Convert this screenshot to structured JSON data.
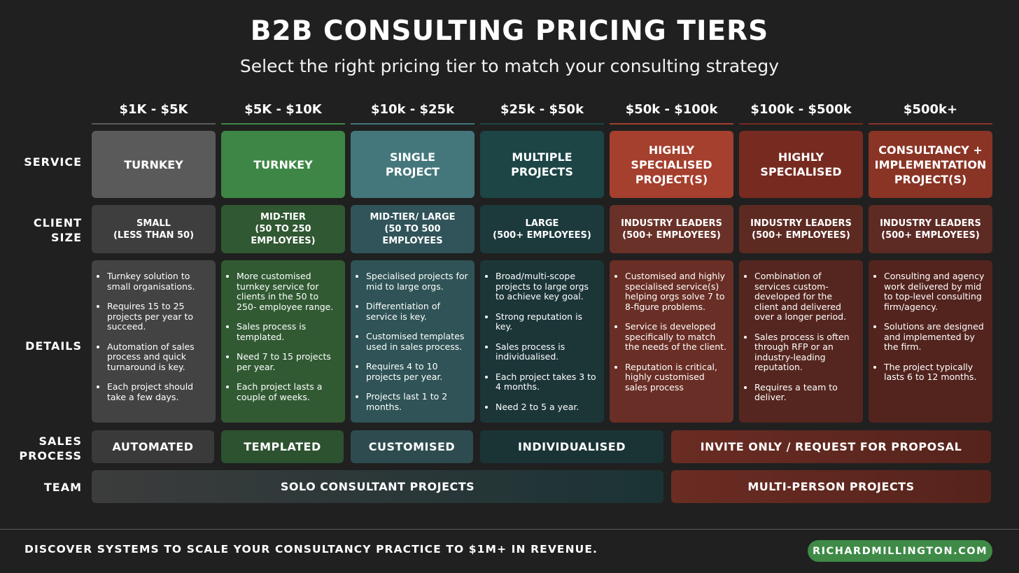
{
  "header": {
    "title": "B2B CONSULTING PRICING TIERS",
    "subtitle": "Select the right pricing tier to match your consulting strategy"
  },
  "row_labels": {
    "service": "SERVICE",
    "client_size_1": "CLIENT",
    "client_size_2": "SIZE",
    "details": "DETAILS",
    "sales_1": "SALES",
    "sales_2": "PROCESS",
    "team": "TEAM"
  },
  "tiers": [
    {
      "price": "$1K - $5K",
      "service": "TURNKEY",
      "client_size_1": "SMALL",
      "client_size_2": "(LESS THAN 50)",
      "details": [
        "Turnkey solution to small organisations.",
        "Requires 15 to 25 projects per year to succeed.",
        "Automation of sales process and quick turnaround is key.",
        "Each project should take a few days."
      ]
    },
    {
      "price": "$5K - $10K",
      "service": "TURNKEY",
      "client_size_1": "MID-TIER",
      "client_size_2": "(50 TO 250 EMPLOYEES)",
      "details": [
        "More customised turnkey service for clients in the 50 to 250- employee range.",
        "Sales process is templated.",
        "Need 7 to 15 projects per year.",
        "Each project lasts a couple of weeks."
      ]
    },
    {
      "price": "$10k - $25k",
      "service": "SINGLE PROJECT",
      "client_size_1": "MID-TIER/ LARGE",
      "client_size_2": "(50 TO 500 EMPLOYEES",
      "details": [
        "Specialised projects for mid to large orgs.",
        "Differentiation of service is key.",
        "Customised templates used in sales process.",
        "Requires 4 to 10 projects per year.",
        "Projects last 1 to 2 months."
      ]
    },
    {
      "price": "$25k - $50k",
      "service": "MULTIPLE PROJECTS",
      "client_size_1": "LARGE",
      "client_size_2": "(500+ EMPLOYEES)",
      "details": [
        "Broad/multi-scope projects to large orgs to achieve key goal.",
        "Strong reputation is key.",
        "Sales process is individualised.",
        "Each project takes 3 to 4 months.",
        "Need 2 to 5 a year."
      ]
    },
    {
      "price": "$50k - $100k",
      "service": "HIGHLY SPECIALISED PROJECT(S)",
      "client_size_1": "INDUSTRY LEADERS",
      "client_size_2": "(500+ EMPLOYEES)",
      "details": [
        "Customised and highly specialised service(s) helping orgs solve 7 to 8-figure problems.",
        "Service is developed specifically to match the needs of the client.",
        "Reputation is critical, highly customised sales process"
      ]
    },
    {
      "price": "$100k - $500k",
      "service": "HIGHLY SPECIALISED",
      "client_size_1": "INDUSTRY LEADERS",
      "client_size_2": "(500+ EMPLOYEES)",
      "details": [
        "Combination of services custom-developed for the client and delivered over a longer period.",
        "Sales process is often through RFP or an industry-leading reputation.",
        "Requires a team to deliver."
      ]
    },
    {
      "price": "$500k+",
      "service": "CONSULTANCY + IMPLEMENTATION PROJECT(S)",
      "client_size_1": "INDUSTRY LEADERS",
      "client_size_2": "(500+ EMPLOYEES)",
      "details": [
        "Consulting and agency work delivered by mid to top-level consulting firm/agency.",
        "Solutions are designed and implemented by the firm.",
        "The project typically lasts 6 to 12 months."
      ]
    }
  ],
  "sales_process": [
    "AUTOMATED",
    "TEMPLATED",
    "CUSTOMISED",
    "INDIVIDUALISED",
    "INVITE ONLY / REQUEST FOR PROPOSAL"
  ],
  "team": [
    "SOLO CONSULTANT PROJECTS",
    "MULTI-PERSON PROJECTS"
  ],
  "footer": {
    "text": "DISCOVER SYSTEMS TO SCALE YOUR CONSULTANCY PRACTICE TO $1M+ IN REVENUE.",
    "link": "RICHARDMILLINGTON.COM"
  },
  "colors": {
    "background": "#202020",
    "tier_service": [
      "#5a5a5a",
      "#3e8645",
      "#44777b",
      "#1d4546",
      "#a53f2e",
      "#772a20",
      "#8a3425"
    ],
    "tier_client": [
      "#3e3e3e",
      "#305832",
      "#30545a",
      "#1c3a3c",
      "#6a3128",
      "#5d2a22",
      "#5e2a24"
    ],
    "tier_details": [
      "#434343",
      "#315a33",
      "#2f5356",
      "#1c3638",
      "#692e25",
      "#55261f",
      "#53241e"
    ],
    "footer_button": "#3e8a46"
  }
}
